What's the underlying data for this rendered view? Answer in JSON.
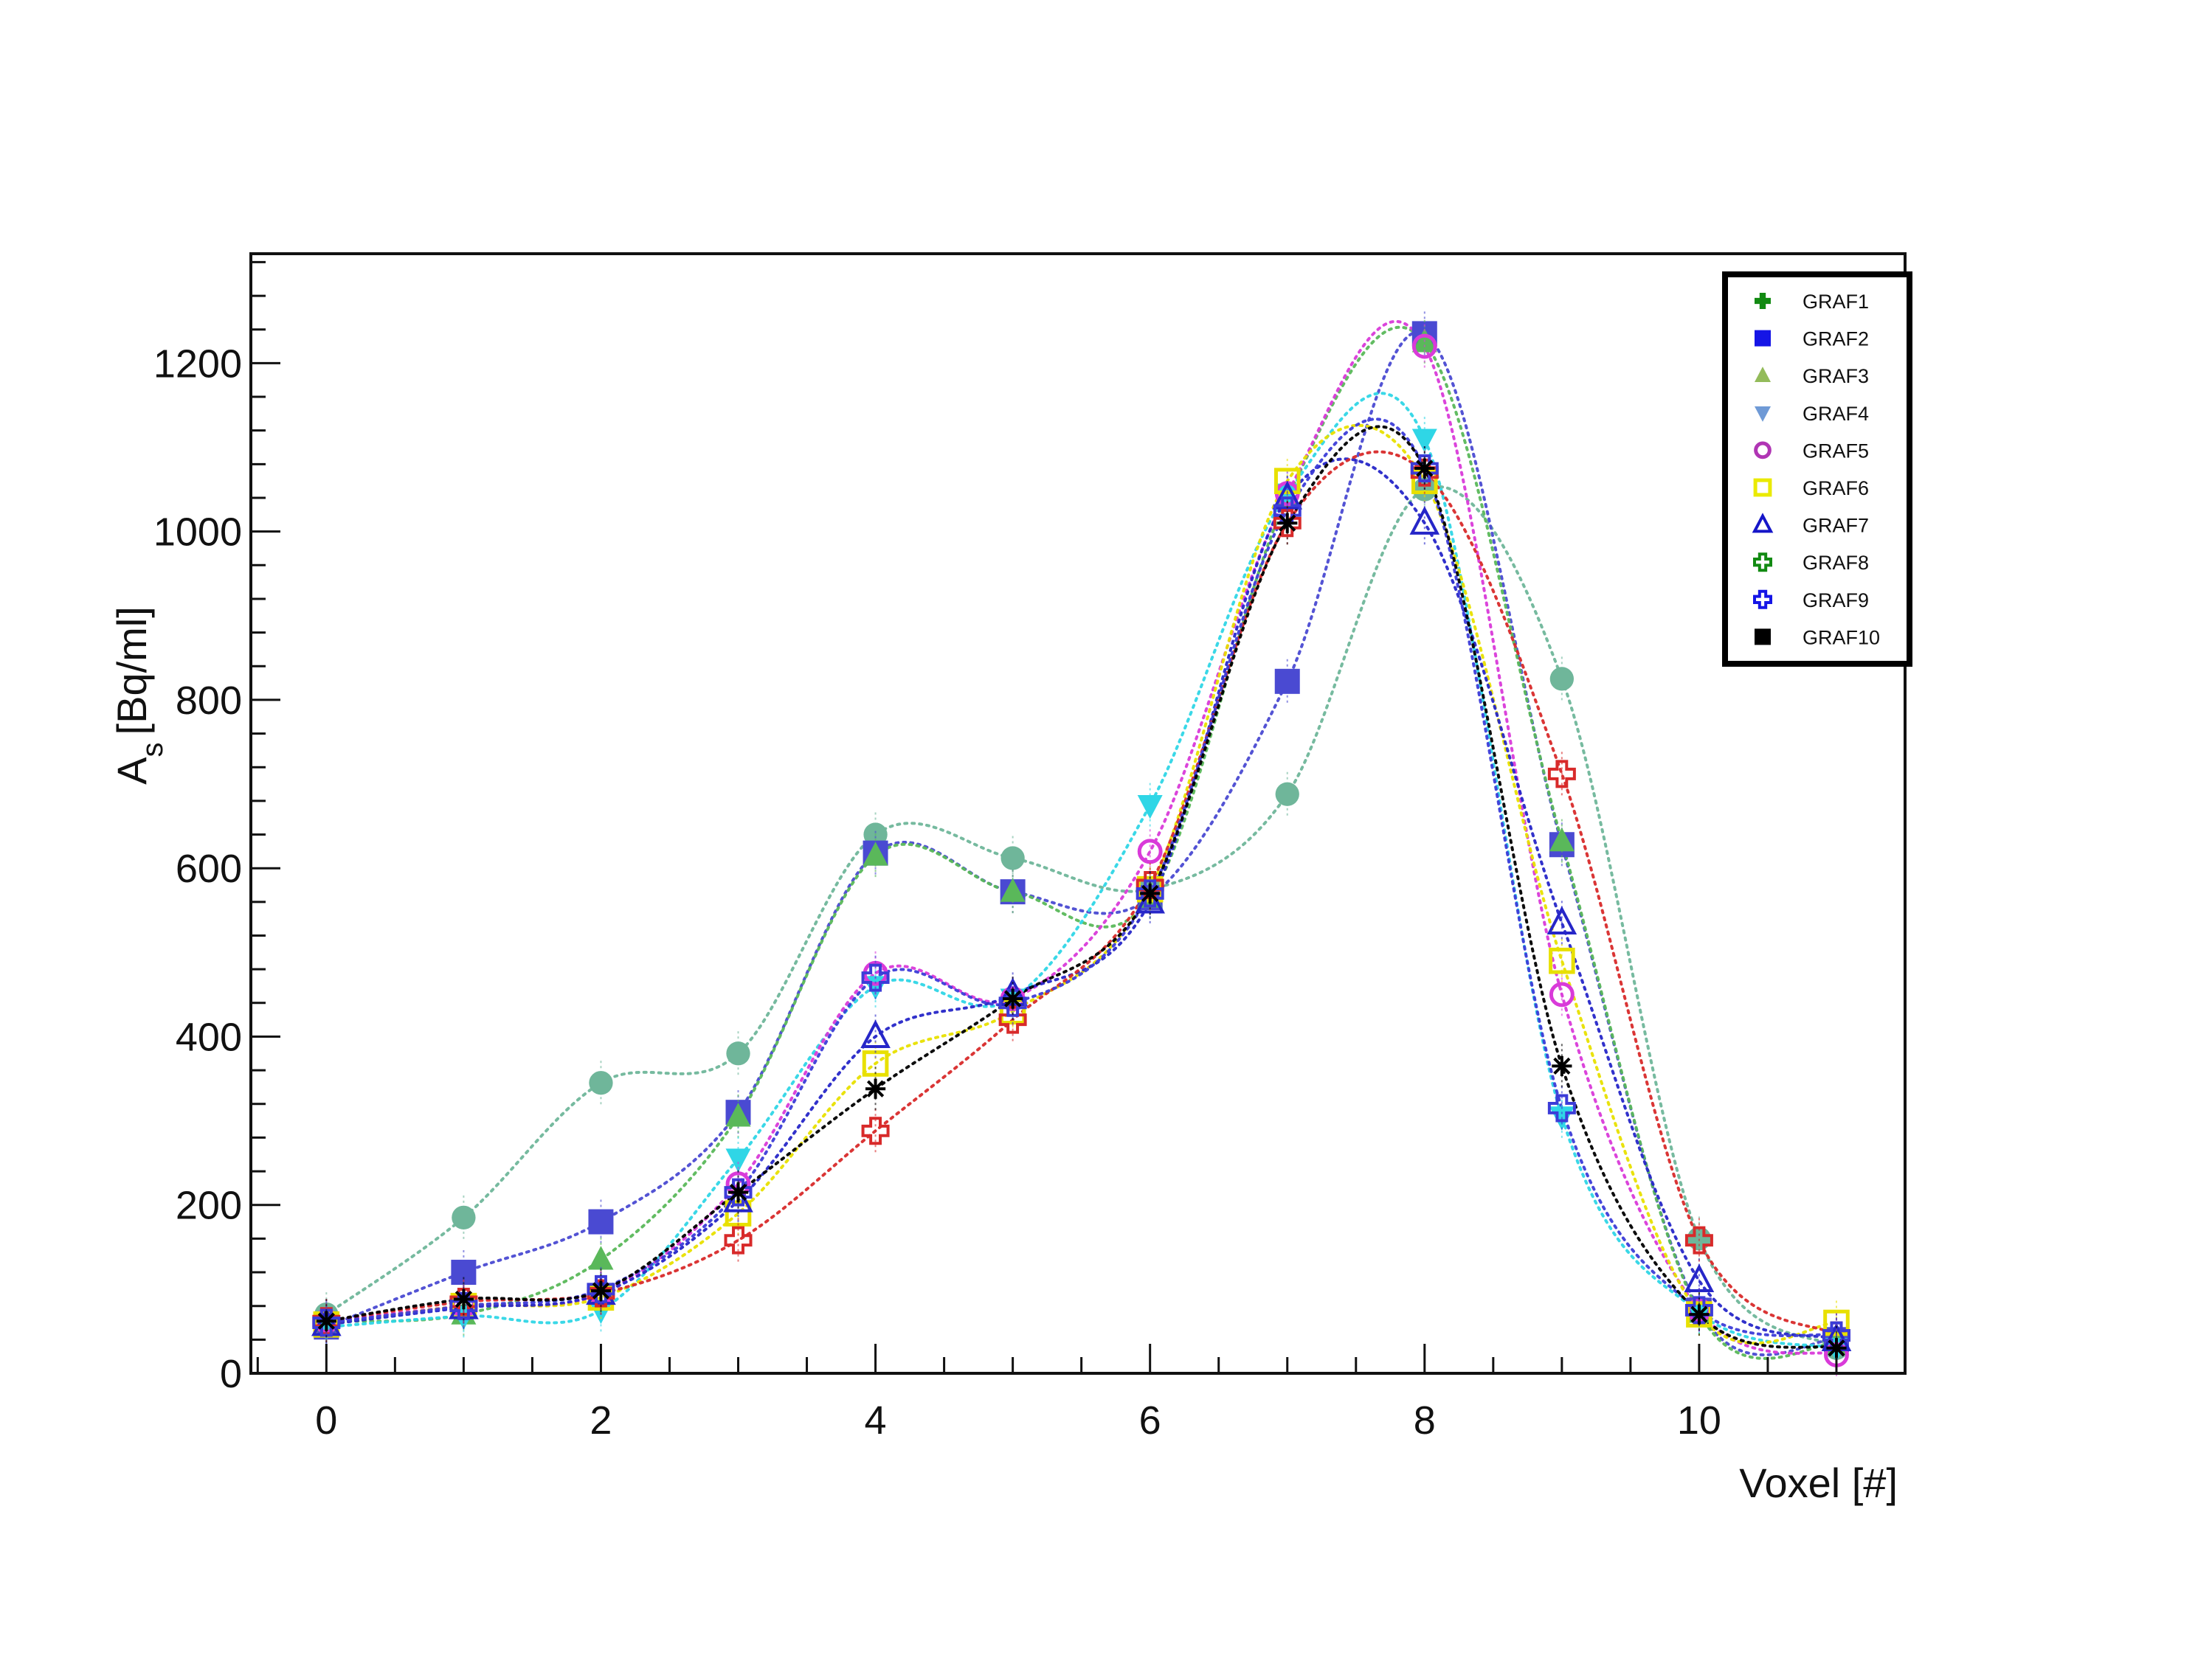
{
  "chart_data": {
    "type": "line",
    "xlabel": "Voxel [#]",
    "ylabel_main": "A",
    "ylabel_sub": "s",
    "ylabel_unit": "[Bq/ml]",
    "xlim": [
      -0.55,
      11.5
    ],
    "ylim": [
      0,
      1330
    ],
    "xticks": [
      0,
      2,
      4,
      6,
      8,
      10
    ],
    "yticks": [
      0,
      200,
      400,
      600,
      800,
      1000,
      1200
    ],
    "x": [
      0,
      1,
      2,
      3,
      4,
      5,
      6,
      7,
      8,
      9,
      10,
      11
    ],
    "grid": false,
    "legend_position": "top-right",
    "series": [
      {
        "name": "GRAF1",
        "legend_marker": "plus-filled",
        "plot_marker": "circle-filled",
        "legend_color": "#128a12",
        "color": "#6fb69a",
        "values": [
          70,
          185,
          345,
          380,
          640,
          612,
          575,
          688,
          1050,
          825,
          160,
          30
        ]
      },
      {
        "name": "GRAF2",
        "legend_marker": "square-filled",
        "legend_color": "#1515e6",
        "color": "#4a4ad2",
        "values": [
          55,
          120,
          180,
          310,
          618,
          572,
          565,
          822,
          1235,
          628,
          75,
          40
        ]
      },
      {
        "name": "GRAF3",
        "legend_marker": "triangle-up-filled",
        "legend_color": "#93bb5a",
        "color": "#5ab85a",
        "values": [
          62,
          70,
          135,
          305,
          615,
          572,
          565,
          1040,
          1225,
          632,
          72,
          35
        ]
      },
      {
        "name": "GRAF4",
        "legend_marker": "triangle-down-filled",
        "legend_color": "#6f9ad6",
        "color": "#2fd6e6",
        "values": [
          55,
          68,
          75,
          255,
          460,
          445,
          675,
          1045,
          1110,
          305,
          72,
          30
        ]
      },
      {
        "name": "GRAF5",
        "legend_marker": "circle-open",
        "legend_color": "#b035b4",
        "color": "#d93ad9",
        "values": [
          62,
          80,
          95,
          225,
          475,
          445,
          620,
          1045,
          1220,
          450,
          75,
          22
        ]
      },
      {
        "name": "GRAF6",
        "legend_marker": "square-open",
        "legend_color": "#eaea00",
        "color": "#e8e000",
        "values": [
          58,
          80,
          90,
          190,
          368,
          430,
          575,
          1060,
          1060,
          490,
          70,
          60
        ]
      },
      {
        "name": "GRAF7",
        "legend_marker": "triangle-up-open",
        "legend_color": "#1515c8",
        "color": "#2626c8",
        "values": [
          58,
          78,
          95,
          205,
          400,
          450,
          560,
          1040,
          1010,
          535,
          110,
          40
        ]
      },
      {
        "name": "GRAF8",
        "legend_marker": "plus-open",
        "legend_color": "#128a12",
        "color": "#d82a2a",
        "values": [
          62,
          85,
          95,
          158,
          288,
          420,
          580,
          1010,
          1070,
          712,
          158,
          45
        ]
      },
      {
        "name": "GRAF9",
        "legend_marker": "plus-open",
        "legend_color": "#1515e6",
        "color": "#3c3cd8",
        "values": [
          60,
          80,
          100,
          215,
          470,
          440,
          570,
          1025,
          1075,
          315,
          75,
          45
        ]
      },
      {
        "name": "GRAF10",
        "legend_marker": "square-filled",
        "legend_color": "#000000",
        "color": "#000000",
        "plot_marker": "star",
        "values": [
          62,
          88,
          98,
          215,
          338,
          445,
          570,
          1010,
          1075,
          365,
          70,
          30
        ]
      }
    ]
  }
}
